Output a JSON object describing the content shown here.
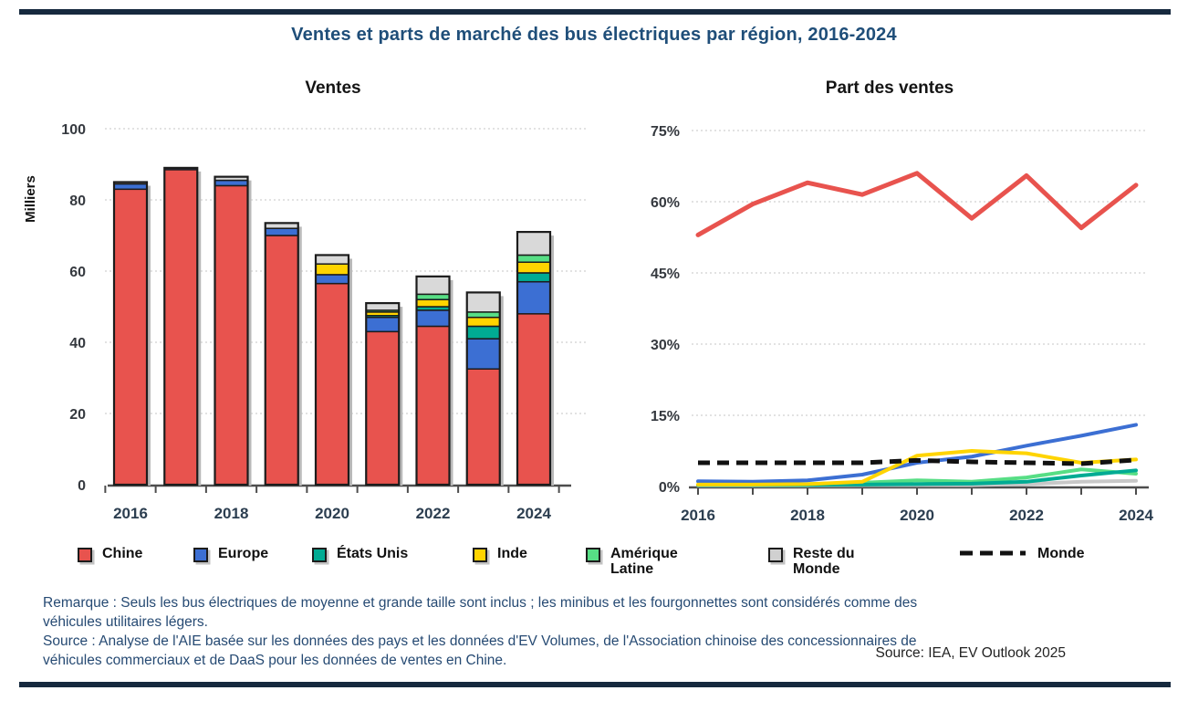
{
  "title": "Ventes et parts de marché des bus électriques par région, 2016-2024",
  "colors": {
    "frame_rule": "#16293e",
    "title_blue": "#1f4e79",
    "footnote_blue": "#264a73",
    "chine_red": "#e8534e",
    "europe_blue": "#3c6fd3",
    "etats_unis_teal": "#00ab93",
    "inde_yellow": "#ffd400",
    "amerique_latine_green": "#57de85",
    "reste_du_monde_gray": "#d9d9d9",
    "monde_black": "#111111"
  },
  "legend": {
    "items": [
      {
        "label": "Chine",
        "color": "#e8534e",
        "type": "square"
      },
      {
        "label": "Europe",
        "color": "#3c6fd3",
        "type": "square"
      },
      {
        "label": "États Unis",
        "color": "#00ab93",
        "type": "square"
      },
      {
        "label": "Inde",
        "color": "#ffd400",
        "type": "square"
      },
      {
        "label": "Amérique Latine",
        "color": "#57de85",
        "type": "square"
      },
      {
        "label": "Reste du Monde",
        "color": "#d0d0d0",
        "type": "square"
      },
      {
        "label": "Monde",
        "color": "#111111",
        "type": "dash"
      }
    ]
  },
  "footnotes": {
    "line1": "Remarque : Seuls les bus électriques de moyenne et grande taille sont inclus ; les minibus et les fourgonnettes sont considérés comme des",
    "line2": "véhicules utilitaires légers.",
    "line3": "Source : Analyse de l'AIE basée sur les données des pays et les données d'EV Volumes, de l'Association chinoise des concessionnaires de",
    "line4": "véhicules commerciaux et de DaaS pour les données de ventes en Chine.",
    "source_right": "Source: IEA, EV Outlook 2025"
  },
  "chart_data": [
    {
      "type": "bar",
      "title": "Ventes",
      "ylabel": "Milliers",
      "ylim": [
        0,
        100
      ],
      "yticks": [
        0,
        20,
        40,
        60,
        80,
        100
      ],
      "grid": true,
      "categories": [
        "2016",
        "2017",
        "2018",
        "2019",
        "2020",
        "2021",
        "2022",
        "2023",
        "2024"
      ],
      "xtick_labels": [
        "2016",
        "2018",
        "2020",
        "2022",
        "2024"
      ],
      "series": [
        {
          "name": "Chine",
          "color": "#e8534e",
          "values": [
            83,
            88.5,
            84,
            70,
            56.5,
            43,
            44.5,
            32.5,
            48
          ]
        },
        {
          "name": "Europe",
          "color": "#3c6fd3",
          "values": [
            1.5,
            0.5,
            1.5,
            2,
            2.5,
            4,
            4.5,
            8.5,
            9
          ]
        },
        {
          "name": "États Unis",
          "color": "#00ab93",
          "values": [
            0,
            0,
            0,
            0,
            0,
            0.5,
            1,
            3.5,
            2.5
          ]
        },
        {
          "name": "Inde",
          "color": "#ffd400",
          "values": [
            0,
            0,
            0,
            0,
            3,
            1,
            2,
            2.5,
            3
          ]
        },
        {
          "name": "Amérique Latine",
          "color": "#57de85",
          "values": [
            0,
            0,
            0,
            0,
            0,
            0.5,
            1.5,
            1.5,
            2
          ]
        },
        {
          "name": "Reste du Monde",
          "color": "#d9d9d9",
          "values": [
            0.5,
            0,
            1,
            1.5,
            2.5,
            2,
            5,
            5.5,
            6.5
          ]
        }
      ]
    },
    {
      "type": "line",
      "title": "Part des ventes",
      "ylim": [
        0,
        75
      ],
      "yticks": [
        0,
        15,
        30,
        45,
        60,
        75
      ],
      "ytick_suffix": "%",
      "grid": true,
      "categories": [
        "2016",
        "2017",
        "2018",
        "2019",
        "2020",
        "2021",
        "2022",
        "2023",
        "2024"
      ],
      "xtick_labels": [
        "2016",
        "2018",
        "2020",
        "2022",
        "2024"
      ],
      "series": [
        {
          "name": "Chine",
          "color": "#e8534e",
          "width": 5,
          "values": [
            53,
            59.5,
            64,
            61.5,
            66,
            56.5,
            65.5,
            54.5,
            63.5
          ]
        },
        {
          "name": "Reste du Monde",
          "color": "#c8c8c8",
          "width": 4,
          "values": [
            0.2,
            0.2,
            0.2,
            0.3,
            0.3,
            0.3,
            0.5,
            1,
            1.2
          ]
        },
        {
          "name": "Amérique Latine",
          "color": "#57de85",
          "width": 4,
          "values": [
            0.3,
            0.4,
            0.5,
            0.8,
            1.3,
            1,
            1.9,
            3.6,
            2.7
          ]
        },
        {
          "name": "États Unis",
          "color": "#00ab93",
          "width": 4,
          "values": [
            0.3,
            0.3,
            0.3,
            0.4,
            0.5,
            0.6,
            1,
            2.3,
            3.4
          ]
        },
        {
          "name": "Europe",
          "color": "#3c6fd3",
          "width": 4,
          "values": [
            1.1,
            1,
            1.3,
            2.5,
            5,
            6.3,
            8.6,
            10.7,
            13
          ]
        },
        {
          "name": "Inde",
          "color": "#ffd400",
          "width": 4,
          "values": [
            0.4,
            0.4,
            0.5,
            1,
            6.5,
            7.5,
            7,
            5,
            5.7
          ]
        },
        {
          "name": "Monde",
          "color": "#111111",
          "width": 5,
          "dash": "13 8",
          "values": [
            5,
            5,
            5,
            5,
            5.5,
            5.2,
            5,
            4.8,
            5.6
          ]
        }
      ]
    }
  ]
}
